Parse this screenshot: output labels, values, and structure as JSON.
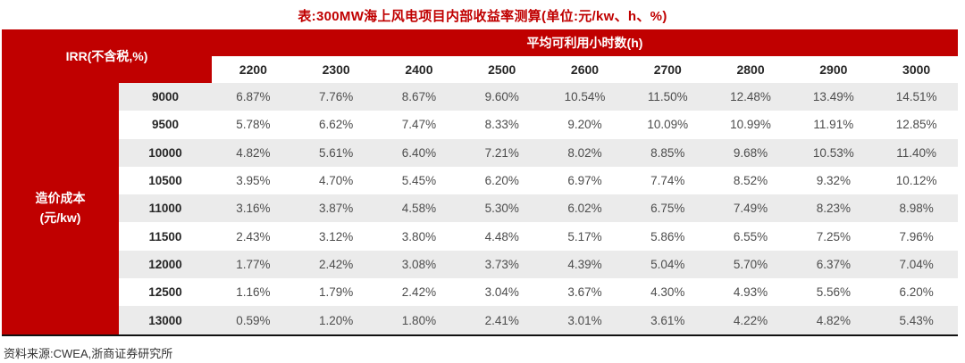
{
  "title": "表:300MW海上风电项目内部收益率测算(单位:元/kw、h、%)",
  "source_note": "资料来源:CWEA,浙商证券研究所",
  "colors": {
    "accent_red": "#c00000",
    "alt_row_bg": "#ebebeb",
    "table_bottom_border": "#111111",
    "data_text": "#4d4d4d"
  },
  "chart_data": {
    "type": "table",
    "title": "表:300MW海上风电项目内部收益率测算(单位:元/kw、h、%)",
    "corner_label": "IRR(不含税,%)",
    "col_group_label": "平均可利用小时数(h)",
    "row_group_label": "造价成本\n(元/kw)",
    "columns": [
      "2200",
      "2300",
      "2400",
      "2500",
      "2600",
      "2700",
      "2800",
      "2900",
      "3000"
    ],
    "rows": [
      {
        "label": "9000",
        "values": [
          "6.87%",
          "7.76%",
          "8.67%",
          "9.60%",
          "10.54%",
          "11.50%",
          "12.48%",
          "13.49%",
          "14.51%"
        ]
      },
      {
        "label": "9500",
        "values": [
          "5.78%",
          "6.62%",
          "7.47%",
          "8.33%",
          "9.20%",
          "10.09%",
          "10.99%",
          "11.91%",
          "12.85%"
        ]
      },
      {
        "label": "10000",
        "values": [
          "4.82%",
          "5.61%",
          "6.40%",
          "7.21%",
          "8.02%",
          "8.85%",
          "9.68%",
          "10.53%",
          "11.40%"
        ]
      },
      {
        "label": "10500",
        "values": [
          "3.95%",
          "4.70%",
          "5.45%",
          "6.20%",
          "6.97%",
          "7.74%",
          "8.52%",
          "9.32%",
          "10.12%"
        ]
      },
      {
        "label": "11000",
        "values": [
          "3.16%",
          "3.87%",
          "4.58%",
          "5.30%",
          "6.02%",
          "6.75%",
          "7.49%",
          "8.23%",
          "8.98%"
        ]
      },
      {
        "label": "11500",
        "values": [
          "2.43%",
          "3.12%",
          "3.80%",
          "4.48%",
          "5.17%",
          "5.86%",
          "6.55%",
          "7.25%",
          "7.96%"
        ]
      },
      {
        "label": "12000",
        "values": [
          "1.77%",
          "2.42%",
          "3.08%",
          "3.73%",
          "4.39%",
          "5.04%",
          "5.70%",
          "6.37%",
          "7.04%"
        ]
      },
      {
        "label": "12500",
        "values": [
          "1.16%",
          "1.79%",
          "2.42%",
          "3.04%",
          "3.67%",
          "4.30%",
          "4.93%",
          "5.56%",
          "6.20%"
        ]
      },
      {
        "label": "13000",
        "values": [
          "0.59%",
          "1.20%",
          "1.80%",
          "2.41%",
          "3.01%",
          "3.61%",
          "4.22%",
          "4.82%",
          "5.43%"
        ]
      }
    ],
    "source": "资料来源:CWEA,浙商证券研究所",
    "layout": {
      "alt_rows_shaded": "odd rows starting with first data row",
      "grid": "off"
    }
  }
}
